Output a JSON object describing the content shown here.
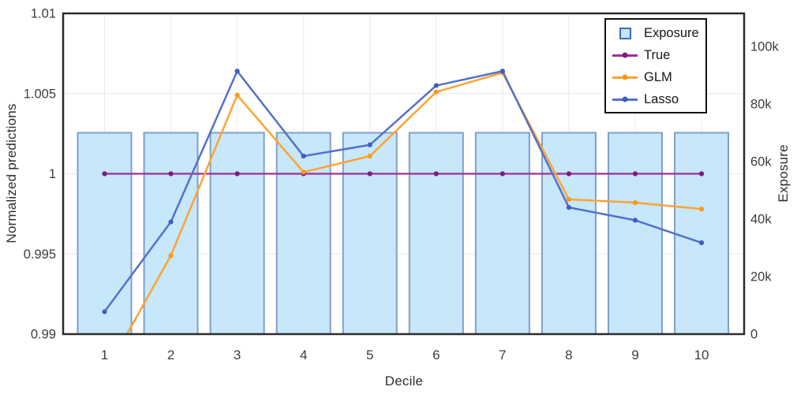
{
  "chart_data": {
    "type": "combo-bar-line",
    "title": "",
    "xlabel": "Decile",
    "categories": [
      "1",
      "2",
      "3",
      "4",
      "5",
      "6",
      "7",
      "8",
      "9",
      "10"
    ],
    "left_axis": {
      "label": "Normalized predictions",
      "range": [
        0.99,
        1.01
      ],
      "ticks": [
        {
          "v": 0.99,
          "label": "0.99"
        },
        {
          "v": 0.995,
          "label": "0.995"
        },
        {
          "v": 1.0,
          "label": "1"
        },
        {
          "v": 1.005,
          "label": "1.005"
        },
        {
          "v": 1.01,
          "label": "1.01"
        }
      ]
    },
    "right_axis": {
      "label": "Exposure",
      "range": [
        0,
        111507
      ],
      "ticks": [
        {
          "v": 0,
          "label": "0"
        },
        {
          "v": 20000,
          "label": "20k"
        },
        {
          "v": 40000,
          "label": "40k"
        },
        {
          "v": 60000,
          "label": "60k"
        },
        {
          "v": 80000,
          "label": "80k"
        },
        {
          "v": 100000,
          "label": "100k"
        }
      ]
    },
    "series": [
      {
        "name": "Exposure",
        "type": "bar",
        "axis": "right",
        "fill": "#c7e7fa",
        "stroke": "#7f9fca",
        "values": [
          70000,
          70000,
          70000,
          70000,
          70000,
          70000,
          70000,
          70000,
          70000,
          70000
        ]
      },
      {
        "name": "True",
        "type": "line",
        "axis": "left",
        "color": "#9d3098",
        "marker_color": "#7a1d7e",
        "values": [
          1.0,
          1.0,
          1.0,
          1.0,
          1.0,
          1.0,
          1.0,
          1.0,
          1.0,
          1.0
        ]
      },
      {
        "name": "GLM",
        "type": "line",
        "axis": "left",
        "color": "#fea333",
        "marker_color": "#f9991c",
        "values": [
          0.9875,
          0.9949,
          1.0049,
          1.0001,
          1.0011,
          1.0051,
          1.0063,
          0.9984,
          0.9982,
          0.9978
        ]
      },
      {
        "name": "Lasso",
        "type": "line",
        "axis": "left",
        "color": "#5571c7",
        "marker_color": "#3f5ec0",
        "values": [
          0.9914,
          0.997,
          1.0064,
          1.0011,
          1.0018,
          1.0055,
          1.0064,
          0.9979,
          0.9971,
          0.9957
        ]
      }
    ],
    "legend_position": "top-right",
    "grid": true
  }
}
